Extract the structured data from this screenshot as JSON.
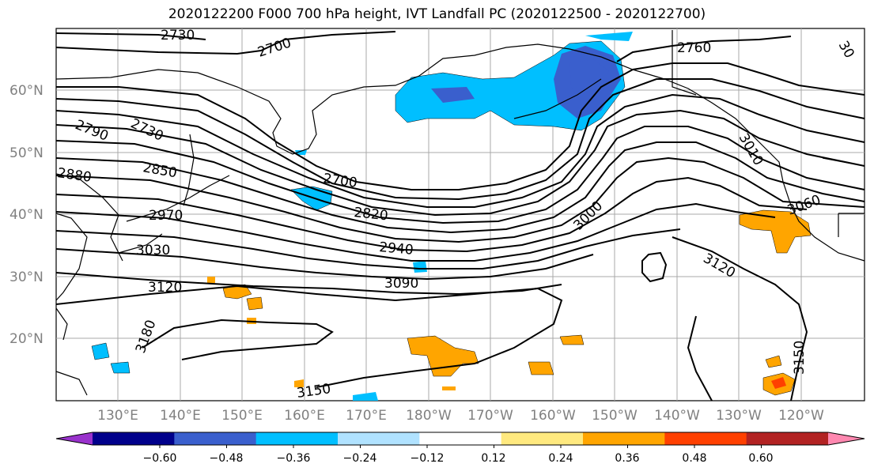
{
  "title": "2020122200 F000 700 hPa height, IVT Landfall PC (2020122500 - 2020122700)",
  "lat_labels": [
    "60°N",
    "50°N",
    "40°N",
    "30°N",
    "20°N"
  ],
  "lon_labels": [
    "130°E",
    "140°E",
    "150°E",
    "160°E",
    "170°E",
    "180°W",
    "170°W",
    "160°W",
    "150°W",
    "140°W",
    "130°W",
    "120°W"
  ],
  "contour_labels": [
    "2730",
    "2700",
    "2760",
    "2790",
    "2730",
    "2880",
    "2850",
    "2700",
    "2970",
    "2820",
    "3060",
    "3000",
    "2940",
    "3030",
    "3120",
    "3090",
    "3120",
    "3180",
    "3150",
    "3150",
    "3010",
    "30"
  ],
  "colorbar": {
    "colors": [
      "#9932cc",
      "#00008b",
      "#3a5fcd",
      "#00bfff",
      "#b0e2ff",
      "#ffffff",
      "#ffe97f",
      "#ffa500",
      "#ff4000",
      "#b22222",
      "#ff88b0"
    ],
    "tick_labels": [
      "−0.60",
      "−0.48",
      "−0.36",
      "−0.24",
      "−0.12",
      "0.12",
      "0.24",
      "0.36",
      "0.48",
      "0.60"
    ]
  }
}
